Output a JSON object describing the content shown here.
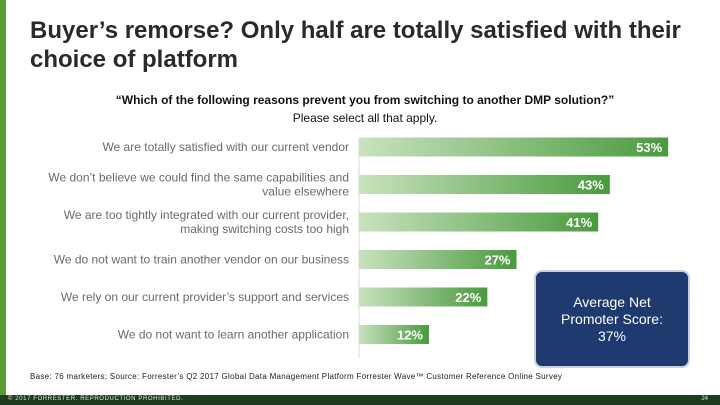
{
  "slide": {
    "title": "Buyer’s remorse? Only half are totally satisfied with their choice of platform",
    "question": "“Which of the following reasons prevent you from switching to another DMP solution?”",
    "instruction": "Please select all that apply.",
    "callout": "Average Net\nPromoter Score:\n37%",
    "footnote": "Base: 76 marketers; Source: Forrester’s Q2 2017 Global Data Management Platform Forrester Wave™ Customer Reference Online Survey",
    "copyright": "© 2017 FORRESTER. REPRODUCTION PROHIBITED.",
    "page_number": "24"
  },
  "chart_data": {
    "type": "bar",
    "orientation": "horizontal",
    "categories": [
      "We are totally satisfied with our current vendor",
      "We don’t believe we could find the same capabilities and value elsewhere",
      "We are too tightly integrated with our current provider, making switching costs too high",
      "We do not want to train another vendor on our business",
      "We rely on our current provider’s support and services",
      "We do not want to learn another application"
    ],
    "category_lines": [
      [
        "We are totally satisfied with our current vendor"
      ],
      [
        "We don’t believe we could find the same capabilities and",
        "value elsewhere"
      ],
      [
        "We are too tightly integrated with our current provider,",
        "making switching costs too high"
      ],
      [
        "We do not want to train another vendor on our business"
      ],
      [
        "We rely on our current provider’s support and services"
      ],
      [
        "We do not want to learn another application"
      ]
    ],
    "values": [
      53,
      43,
      41,
      27,
      22,
      12
    ],
    "data_labels": [
      "53%",
      "43%",
      "41%",
      "27%",
      "22%",
      "12%"
    ],
    "xlim": [
      0,
      60
    ],
    "bar_color": "#4a9a3e",
    "gradient_end": "#c9e2bf",
    "label_color": "#ffffff",
    "grid": false
  }
}
